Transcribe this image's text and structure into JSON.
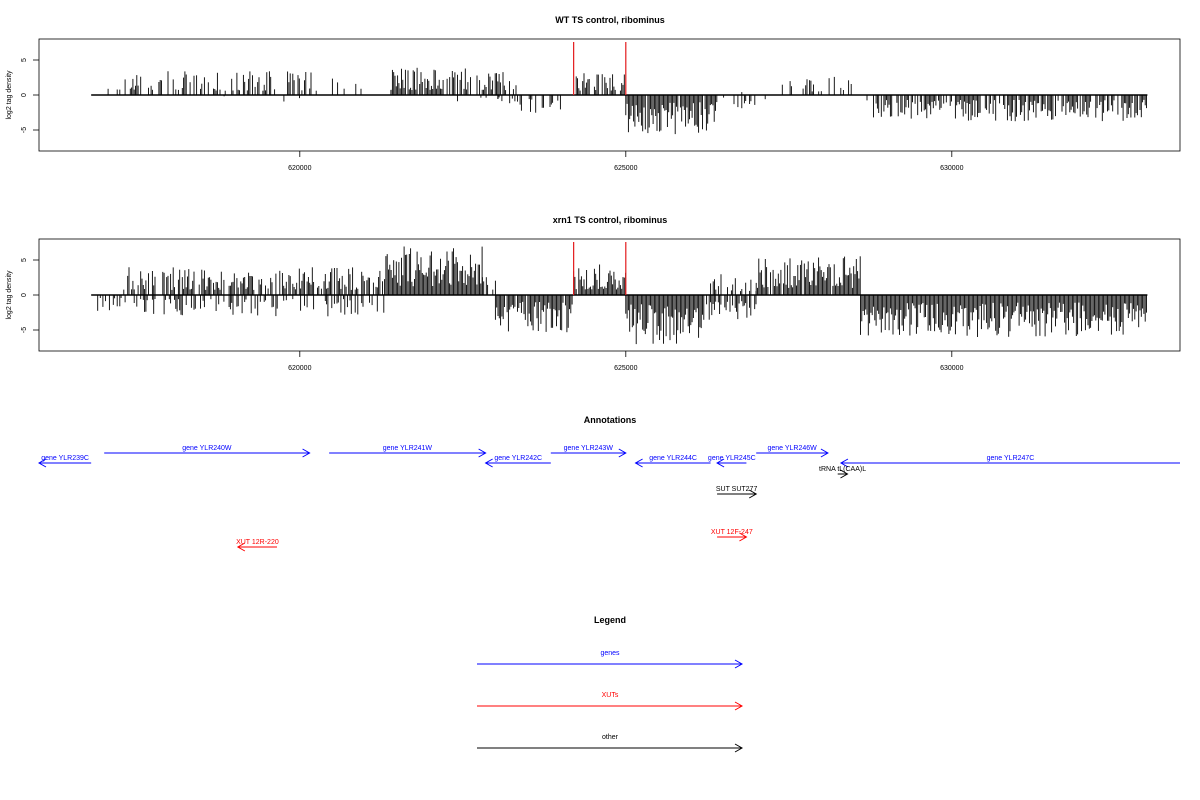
{
  "chart_data": [
    {
      "type": "bar",
      "title": "WT TS control, ribominus",
      "xlabel": "",
      "ylabel": "log2 tag density",
      "xlim": [
        616000,
        633500
      ],
      "ylim": [
        -8,
        8
      ],
      "x_ticks": [
        620000,
        625000,
        630000
      ],
      "x_tick_labels": [
        "620000",
        "625000",
        "630000"
      ],
      "y_ticks": [
        -5,
        0,
        5
      ],
      "y_tick_labels": [
        "-5",
        "0",
        "5"
      ],
      "grid": false,
      "markers": [
        {
          "x": 624200,
          "color": "#e31a1c"
        },
        {
          "x": 625000,
          "color": "#e31a1c"
        }
      ],
      "segments": [
        {
          "from": 616800,
          "to": 617300,
          "sign": 1,
          "max": 1.0,
          "density": 0.15
        },
        {
          "from": 617300,
          "to": 620300,
          "sign": 1,
          "max": 3.4,
          "density": 0.45
        },
        {
          "from": 618700,
          "to": 620000,
          "sign": -1,
          "max": 1.0,
          "density": 0.06
        },
        {
          "from": 620300,
          "to": 621400,
          "sign": 1,
          "max": 2.5,
          "density": 0.15
        },
        {
          "from": 621400,
          "to": 622200,
          "sign": 1,
          "max": 3.9,
          "density": 0.9
        },
        {
          "from": 622200,
          "to": 623400,
          "sign": 1,
          "max": 3.8,
          "density": 0.55
        },
        {
          "from": 622000,
          "to": 623300,
          "sign": -1,
          "max": 1.6,
          "density": 0.1
        },
        {
          "from": 623000,
          "to": 624000,
          "sign": -1,
          "max": 2.6,
          "density": 0.3
        },
        {
          "from": 624200,
          "to": 625000,
          "sign": 1,
          "max": 3.2,
          "density": 0.6
        },
        {
          "from": 625000,
          "to": 626400,
          "sign": -1,
          "max": 5.6,
          "density": 0.95
        },
        {
          "from": 626400,
          "to": 627400,
          "sign": -1,
          "max": 2.0,
          "density": 0.25
        },
        {
          "from": 626600,
          "to": 626900,
          "sign": 1,
          "max": 0.9,
          "density": 0.08
        },
        {
          "from": 627400,
          "to": 628500,
          "sign": 1,
          "max": 2.8,
          "density": 0.35
        },
        {
          "from": 628700,
          "to": 633000,
          "sign": -1,
          "max": 3.8,
          "density": 0.75
        }
      ]
    },
    {
      "type": "bar",
      "title": "xrn1 TS control, ribominus",
      "xlabel": "",
      "ylabel": "log2 tag density",
      "xlim": [
        616000,
        633500
      ],
      "ylim": [
        -8,
        8
      ],
      "x_ticks": [
        620000,
        625000,
        630000
      ],
      "x_tick_labels": [
        "620000",
        "625000",
        "630000"
      ],
      "y_ticks": [
        -5,
        0,
        5
      ],
      "y_tick_labels": [
        "-5",
        "0",
        "5"
      ],
      "grid": false,
      "markers": [
        {
          "x": 624200,
          "color": "#e31a1c"
        },
        {
          "x": 625000,
          "color": "#e31a1c"
        }
      ],
      "segments": [
        {
          "from": 616900,
          "to": 617300,
          "sign": -1,
          "max": 2.3,
          "density": 0.5
        },
        {
          "from": 617300,
          "to": 621300,
          "sign": 1,
          "max": 4.0,
          "density": 0.7
        },
        {
          "from": 617300,
          "to": 621300,
          "sign": -1,
          "max": 3.2,
          "density": 0.35
        },
        {
          "from": 621300,
          "to": 622800,
          "sign": 1,
          "max": 7.0,
          "density": 1.0
        },
        {
          "from": 622800,
          "to": 623000,
          "sign": 1,
          "max": 3.0,
          "density": 0.5
        },
        {
          "from": 623000,
          "to": 624200,
          "sign": -1,
          "max": 5.5,
          "density": 0.9
        },
        {
          "from": 624200,
          "to": 625000,
          "sign": 1,
          "max": 4.4,
          "density": 0.95
        },
        {
          "from": 625000,
          "to": 626200,
          "sign": -1,
          "max": 7.4,
          "density": 1.0
        },
        {
          "from": 626200,
          "to": 627000,
          "sign": -1,
          "max": 3.6,
          "density": 0.7
        },
        {
          "from": 626300,
          "to": 627000,
          "sign": 1,
          "max": 3.0,
          "density": 0.45
        },
        {
          "from": 627000,
          "to": 628600,
          "sign": 1,
          "max": 5.6,
          "density": 0.95
        },
        {
          "from": 628600,
          "to": 633000,
          "sign": -1,
          "max": 6.0,
          "density": 1.0
        }
      ]
    }
  ],
  "annotations": {
    "title": "Annotations",
    "colors": {
      "gene": "#0000ff",
      "xut": "#ff0000",
      "other": "#000000"
    },
    "features": [
      {
        "label": "gene YLR239C",
        "kind": "gene",
        "start": 616000,
        "end": 616800,
        "strand": "-"
      },
      {
        "label": "gene YLR240W",
        "kind": "gene",
        "start": 617000,
        "end": 620150,
        "strand": "+"
      },
      {
        "label": "gene YLR241W",
        "kind": "gene",
        "start": 620450,
        "end": 622850,
        "strand": "+"
      },
      {
        "label": "gene YLR242C",
        "kind": "gene",
        "start": 622850,
        "end": 623850,
        "strand": "-"
      },
      {
        "label": "gene YLR243W",
        "kind": "gene",
        "start": 623850,
        "end": 625000,
        "strand": "+"
      },
      {
        "label": "gene YLR244C",
        "kind": "gene",
        "start": 625150,
        "end": 626300,
        "strand": "-"
      },
      {
        "label": "gene YLR245C",
        "kind": "gene",
        "start": 626400,
        "end": 626850,
        "strand": "-"
      },
      {
        "label": "gene YLR246W",
        "kind": "gene",
        "start": 627000,
        "end": 628100,
        "strand": "+"
      },
      {
        "label": "gene YLR247C",
        "kind": "gene",
        "start": 628300,
        "end": 633500,
        "strand": "-"
      },
      {
        "label": "tRNA tL(CAA)L",
        "kind": "other",
        "start": 628250,
        "end": 628400,
        "strand": "+"
      },
      {
        "label": "SUT SUT277",
        "kind": "other",
        "start": 626400,
        "end": 627000,
        "strand": "+"
      },
      {
        "label": "XUT 12R-220",
        "kind": "xut",
        "start": 619050,
        "end": 619650,
        "strand": "-"
      },
      {
        "label": "XUT 12F-247",
        "kind": "xut",
        "start": 626400,
        "end": 626850,
        "strand": "+"
      }
    ]
  },
  "legend": {
    "title": "Legend",
    "items": [
      {
        "label": "genes",
        "kind": "gene"
      },
      {
        "label": "XUTs",
        "kind": "xut"
      },
      {
        "label": "other",
        "kind": "other"
      }
    ]
  }
}
